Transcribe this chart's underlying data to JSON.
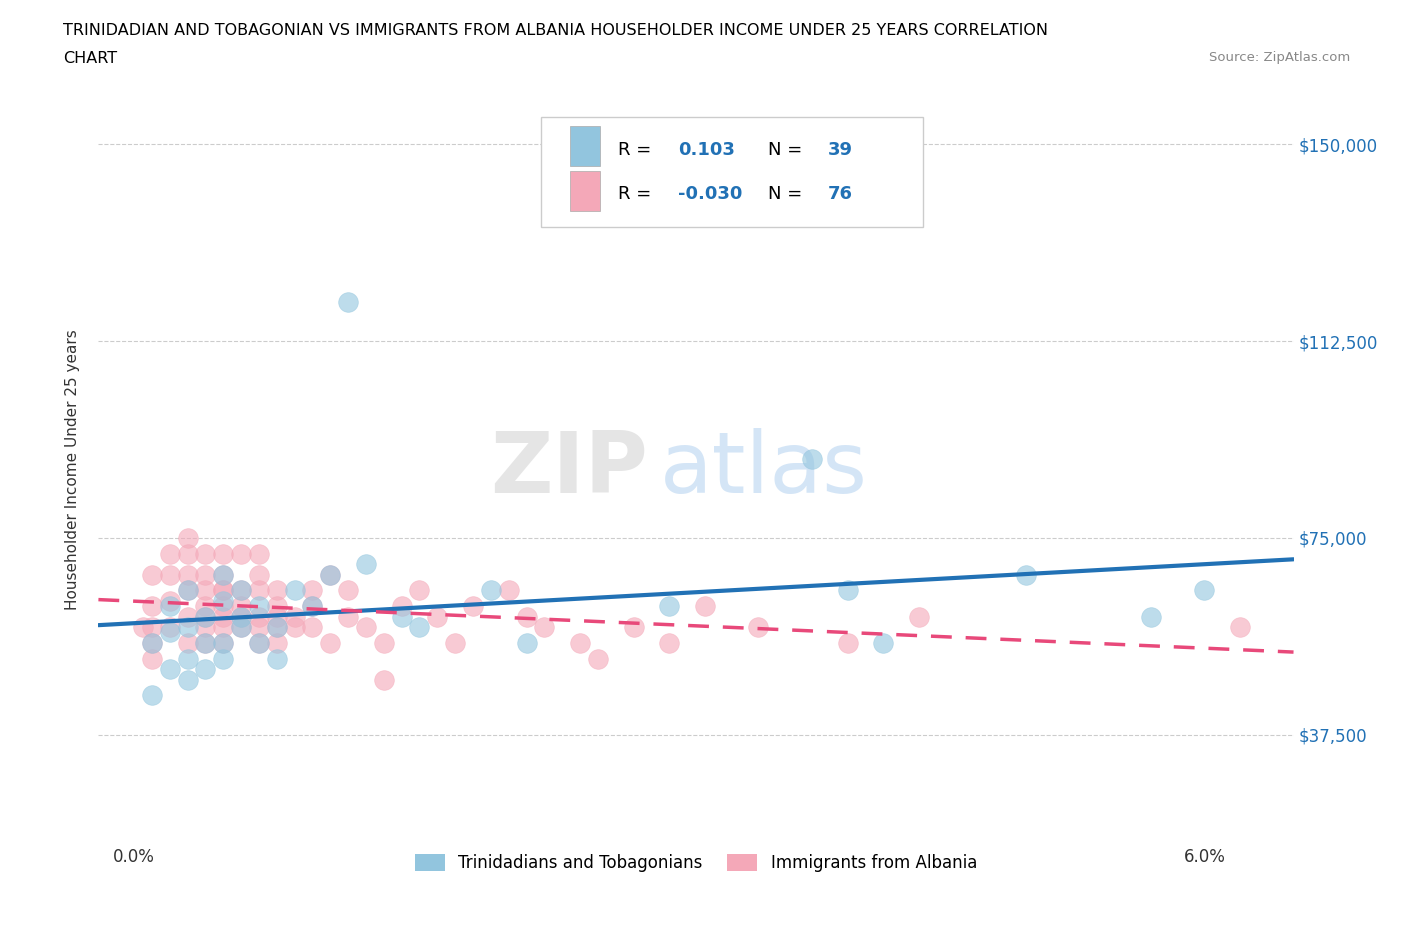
{
  "title_line1": "TRINIDADIAN AND TOBAGONIAN VS IMMIGRANTS FROM ALBANIA HOUSEHOLDER INCOME UNDER 25 YEARS CORRELATION",
  "title_line2": "CHART",
  "source_text": "Source: ZipAtlas.com",
  "ylabel": "Householder Income Under 25 years",
  "xlabel_ticks": [
    "0.0%",
    "",
    "",
    "",
    "",
    "",
    "6.0%"
  ],
  "ylabel_ticks": [
    "$37,500",
    "$75,000",
    "$112,500",
    "$150,000"
  ],
  "ytick_values": [
    37500,
    75000,
    112500,
    150000
  ],
  "xtick_values": [
    0.0,
    0.01,
    0.02,
    0.03,
    0.04,
    0.05,
    0.06
  ],
  "xmin": -0.002,
  "xmax": 0.065,
  "ymin": 18000,
  "ymax": 158000,
  "R_blue": 0.103,
  "N_blue": 39,
  "R_pink": -0.03,
  "N_pink": 76,
  "blue_color": "#92c5de",
  "pink_color": "#f4a8b8",
  "blue_line_color": "#2171b5",
  "pink_line_color": "#e8497a",
  "legend_label_blue": "Trinidadians and Tobagonians",
  "legend_label_pink": "Immigrants from Albania",
  "watermark_zip": "ZIP",
  "watermark_atlas": "atlas",
  "blue_scatter_x": [
    0.001,
    0.001,
    0.002,
    0.002,
    0.002,
    0.003,
    0.003,
    0.003,
    0.003,
    0.004,
    0.004,
    0.004,
    0.005,
    0.005,
    0.005,
    0.005,
    0.006,
    0.006,
    0.006,
    0.007,
    0.007,
    0.008,
    0.008,
    0.009,
    0.01,
    0.011,
    0.012,
    0.013,
    0.015,
    0.016,
    0.02,
    0.022,
    0.03,
    0.038,
    0.04,
    0.042,
    0.05,
    0.057,
    0.06
  ],
  "blue_scatter_y": [
    55000,
    45000,
    57000,
    62000,
    50000,
    58000,
    65000,
    52000,
    48000,
    55000,
    60000,
    50000,
    63000,
    55000,
    68000,
    52000,
    60000,
    65000,
    58000,
    62000,
    55000,
    58000,
    52000,
    65000,
    62000,
    68000,
    120000,
    70000,
    60000,
    58000,
    65000,
    55000,
    62000,
    90000,
    65000,
    55000,
    68000,
    60000,
    65000
  ],
  "pink_scatter_x": [
    0.0005,
    0.001,
    0.001,
    0.001,
    0.001,
    0.001,
    0.002,
    0.002,
    0.002,
    0.002,
    0.003,
    0.003,
    0.003,
    0.003,
    0.003,
    0.003,
    0.004,
    0.004,
    0.004,
    0.004,
    0.004,
    0.004,
    0.004,
    0.005,
    0.005,
    0.005,
    0.005,
    0.005,
    0.005,
    0.005,
    0.005,
    0.006,
    0.006,
    0.006,
    0.006,
    0.006,
    0.007,
    0.007,
    0.007,
    0.007,
    0.007,
    0.007,
    0.008,
    0.008,
    0.008,
    0.008,
    0.008,
    0.009,
    0.009,
    0.01,
    0.01,
    0.01,
    0.011,
    0.011,
    0.012,
    0.012,
    0.013,
    0.014,
    0.014,
    0.015,
    0.016,
    0.017,
    0.018,
    0.019,
    0.021,
    0.022,
    0.023,
    0.025,
    0.026,
    0.028,
    0.03,
    0.032,
    0.035,
    0.04,
    0.044,
    0.062
  ],
  "pink_scatter_y": [
    58000,
    62000,
    55000,
    68000,
    52000,
    58000,
    63000,
    68000,
    72000,
    58000,
    65000,
    55000,
    60000,
    75000,
    68000,
    72000,
    60000,
    65000,
    68000,
    58000,
    72000,
    55000,
    62000,
    65000,
    60000,
    58000,
    62000,
    68000,
    55000,
    72000,
    65000,
    60000,
    65000,
    72000,
    58000,
    62000,
    65000,
    60000,
    58000,
    68000,
    55000,
    72000,
    65000,
    60000,
    58000,
    62000,
    55000,
    60000,
    58000,
    65000,
    62000,
    58000,
    68000,
    55000,
    60000,
    65000,
    58000,
    48000,
    55000,
    62000,
    65000,
    60000,
    55000,
    62000,
    65000,
    60000,
    58000,
    55000,
    52000,
    58000,
    55000,
    62000,
    58000,
    55000,
    60000,
    58000
  ]
}
